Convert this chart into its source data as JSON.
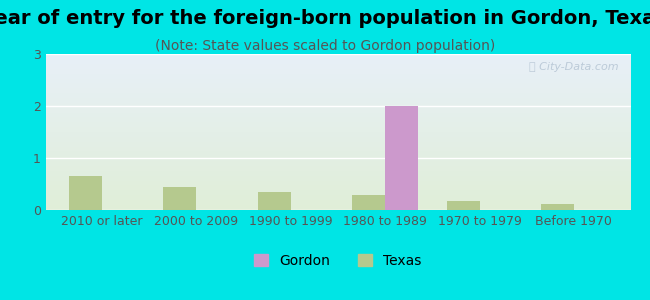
{
  "title": "Year of entry for the foreign-born population in Gordon, Texas",
  "subtitle": "(Note: State values scaled to Gordon population)",
  "categories": [
    "2010 or later",
    "2000 to 2009",
    "1990 to 1999",
    "1980 to 1989",
    "1970 to 1979",
    "Before 1970"
  ],
  "gordon_values": [
    0,
    0,
    0,
    2.0,
    0,
    0
  ],
  "texas_values": [
    0.65,
    0.45,
    0.35,
    0.28,
    0.18,
    0.12
  ],
  "gordon_color": "#cc99cc",
  "texas_color": "#b5c98e",
  "background_color": "#00e5e5",
  "ylim": [
    0,
    3
  ],
  "yticks": [
    0,
    1,
    2,
    3
  ],
  "bar_width": 0.35,
  "title_fontsize": 14,
  "subtitle_fontsize": 10,
  "tick_fontsize": 9,
  "legend_fontsize": 10
}
